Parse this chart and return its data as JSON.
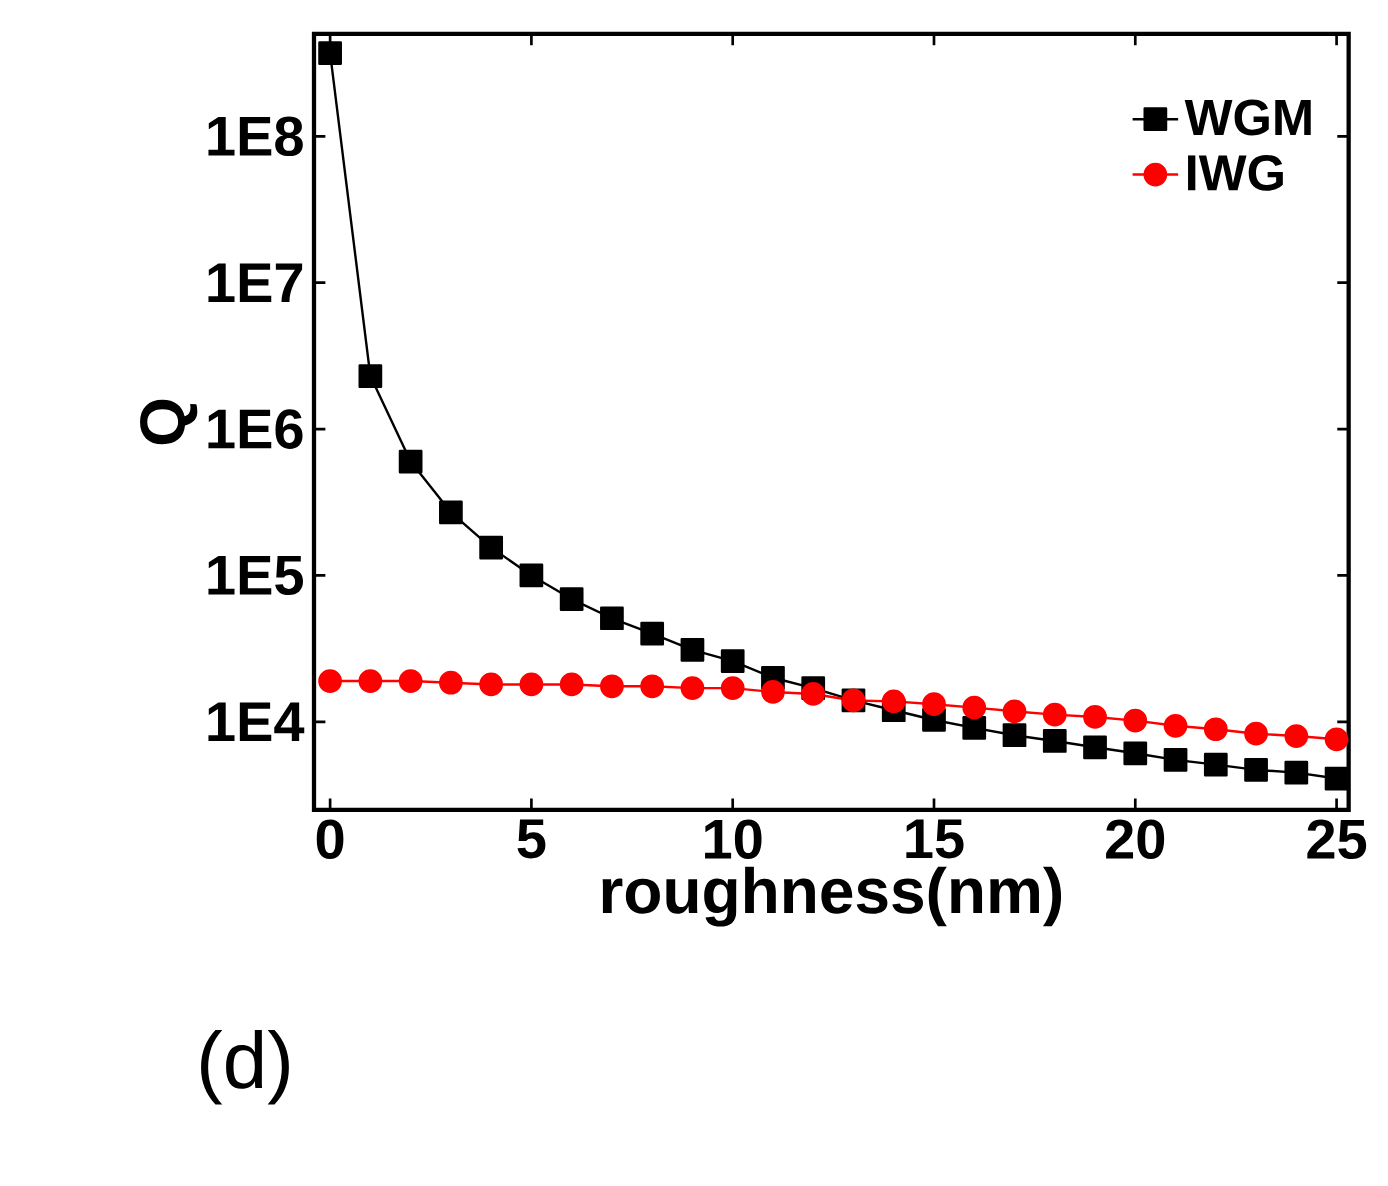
{
  "chart_data": {
    "type": "line",
    "xlabel": "roughness(nm)",
    "ylabel": "Q",
    "log": "y",
    "x": [
      0,
      1,
      2,
      3,
      4,
      5,
      6,
      7,
      8,
      9,
      10,
      11,
      12,
      13,
      14,
      15,
      16,
      17,
      18,
      19,
      20,
      21,
      22,
      23,
      24,
      25
    ],
    "series": [
      {
        "name": "WGM",
        "color": "#000000",
        "marker": "square",
        "values": [
          370000000,
          2300000,
          600000,
          270000,
          155000,
          100000,
          69000,
          51000,
          40000,
          31000,
          26000,
          20000,
          17000,
          14000,
          12000,
          10300,
          9100,
          8100,
          7400,
          6700,
          6100,
          5500,
          5100,
          4700,
          4500,
          4100
        ]
      },
      {
        "name": "IWG",
        "color": "#ff0000",
        "marker": "circle",
        "values": [
          19000,
          19000,
          19000,
          18500,
          18000,
          18000,
          18000,
          17500,
          17500,
          17000,
          17000,
          16000,
          15500,
          14000,
          13800,
          13200,
          12500,
          11800,
          11200,
          10800,
          10200,
          9400,
          8900,
          8300,
          8000,
          7600
        ]
      }
    ],
    "xlim": [
      -0.4,
      25.3
    ],
    "ylim": [
      2500,
      500000000
    ],
    "xticks": [
      0,
      5,
      10,
      15,
      20,
      25
    ],
    "yticks": [
      {
        "value": 10000,
        "label": "1E4"
      },
      {
        "value": 100000,
        "label": "1E5"
      },
      {
        "value": 1000000,
        "label": "1E6"
      },
      {
        "value": 10000000,
        "label": "1E7"
      },
      {
        "value": 100000000,
        "label": "1E8"
      }
    ],
    "legend": "top right",
    "line_style": "solid",
    "annotations": [
      "(d)"
    ]
  }
}
